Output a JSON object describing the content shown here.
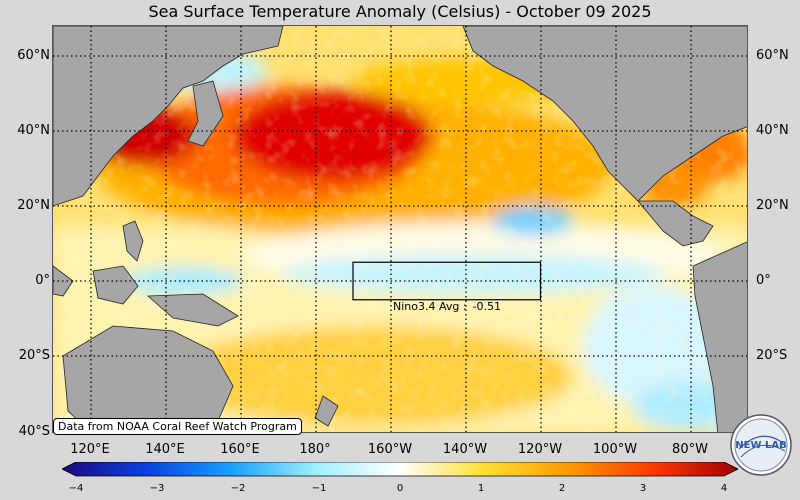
{
  "title": "Sea Surface Temperature Anomaly (Celsius) - October 09 2025",
  "lat_labels": {
    "n60": "60°N",
    "n40": "40°N",
    "n20": "20°N",
    "eq": "0°",
    "s20": "20°S",
    "s40": "40°S"
  },
  "lon_labels": {
    "e120": "120°E",
    "e140": "140°E",
    "e160": "160°E",
    "d180": "180°",
    "w160": "160°W",
    "w140": "140°W",
    "w120": "120°W",
    "w100": "100°W",
    "w80": "80°W"
  },
  "nino": {
    "label": "Nino3.4 Avg :",
    "value": "-0.51",
    "box_lon": [
      -170,
      -120
    ],
    "box_lat": [
      -5,
      5
    ]
  },
  "source_note": "Data from NOAA Coral Reef Watch Program",
  "colorbar": {
    "min": -4,
    "max": 4,
    "ticks": [
      "−4",
      "−3",
      "−2",
      "−1",
      "0",
      "1",
      "2",
      "3",
      "4"
    ],
    "colors": [
      "#1a0a80",
      "#0a40e0",
      "#18a0ff",
      "#9ff0ff",
      "#ffffff",
      "#ffe030",
      "#ff9a00",
      "#ff3800",
      "#a00000"
    ]
  },
  "logo_text": "NEW LAB",
  "colors": {
    "land": "#a6a6a6",
    "warm": "#ff9a00",
    "hot": "#c80000",
    "cool": "#a8ecff",
    "background": "#d8d8d8"
  }
}
